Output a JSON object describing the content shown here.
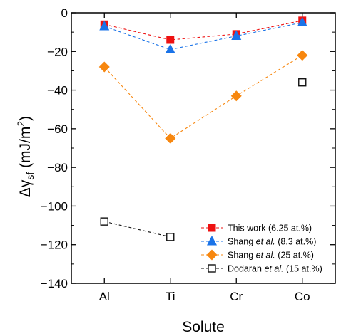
{
  "chart_data": {
    "type": "line",
    "categories": [
      "Al",
      "Ti",
      "Cr",
      "Co"
    ],
    "xlabel": "Solute",
    "ylabel": "Δγsf (mJ/m2)",
    "ylabel_parts": {
      "symbol": "Δγ",
      "subscript": "sf",
      "unit_open": " (mJ/m",
      "superscript": "2",
      "unit_close": ")"
    },
    "ylim": [
      -140,
      0
    ],
    "yticks": [
      0,
      -20,
      -40,
      -60,
      -80,
      -100,
      -120,
      -140
    ],
    "ytick_labels": [
      "0",
      "−20",
      "−40",
      "−60",
      "−80",
      "−100",
      "−120",
      "−140"
    ],
    "grid": false,
    "legend_position": "bottom-right",
    "series": [
      {
        "name": "This work (6.25 at.%)",
        "legend": {
          "before": "This work (6.25 at.%)",
          "italic": "",
          "after": ""
        },
        "values": [
          -6,
          -14,
          -11,
          -4
        ],
        "color": "#ee1111",
        "marker": "square-filled"
      },
      {
        "name": "Shang et al. (8.3 at.%)",
        "legend": {
          "before": "Shang ",
          "italic": "et al.",
          "after": " (8.3 at.%)"
        },
        "values": [
          -7,
          -19,
          -12,
          -5
        ],
        "color": "#1a73e8",
        "marker": "triangle-filled"
      },
      {
        "name": "Shang et al. (25 at.%)",
        "legend": {
          "before": "Shang ",
          "italic": "et al.",
          "after": " (25 at.%)"
        },
        "values": [
          -28,
          -65,
          -43,
          -22
        ],
        "color": "#f7870f",
        "marker": "diamond-filled"
      },
      {
        "name": "Dodaran et al. (15 at.%)",
        "legend": {
          "before": "Dodaran ",
          "italic": "et al.",
          "after": " (15 at.%)"
        },
        "values": [
          -108,
          -116,
          null,
          -36
        ],
        "color": "#111111",
        "marker": "square-open"
      }
    ]
  }
}
